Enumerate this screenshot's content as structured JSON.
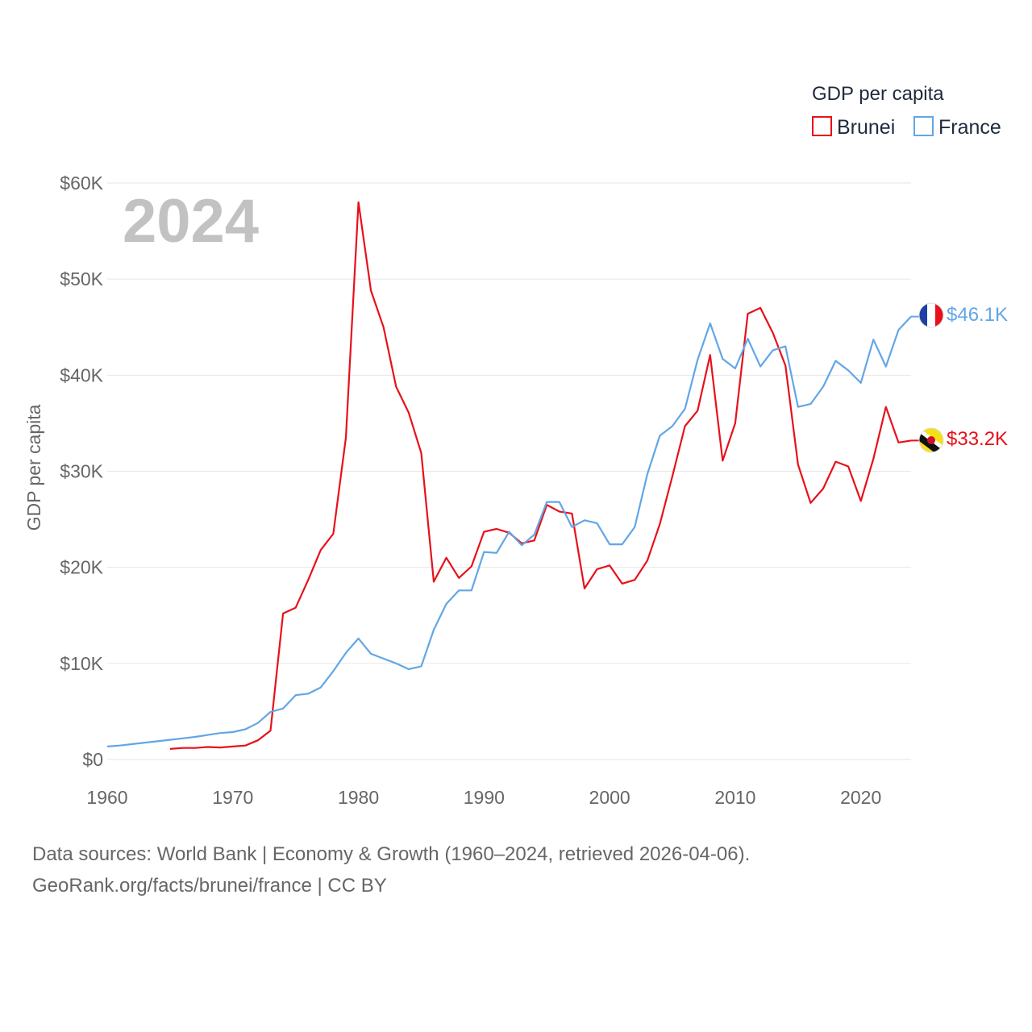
{
  "chart_data": {
    "type": "line",
    "legend_title": "GDP per capita",
    "ylabel": "GDP per capita",
    "year_label": "2024",
    "xlim": [
      1960,
      2024
    ],
    "ylim": [
      0,
      60000
    ],
    "x_ticks": [
      "1960",
      "1970",
      "1980",
      "1990",
      "2000",
      "2010",
      "2020"
    ],
    "y_ticks": [
      "$0",
      "$10K",
      "$20K",
      "$30K",
      "$40K",
      "$50K",
      "$60K"
    ],
    "series": [
      {
        "name": "Brunei",
        "color": "#e8101a",
        "end_label": "$33.2K",
        "flag_icon": "brunei-flag-icon",
        "points": [
          [
            1965,
            1100
          ],
          [
            1966,
            1200
          ],
          [
            1967,
            1200
          ],
          [
            1968,
            1300
          ],
          [
            1969,
            1250
          ],
          [
            1970,
            1350
          ],
          [
            1971,
            1450
          ],
          [
            1972,
            2000
          ],
          [
            1973,
            3000
          ],
          [
            1974,
            15200
          ],
          [
            1975,
            15800
          ],
          [
            1976,
            18700
          ],
          [
            1977,
            21800
          ],
          [
            1978,
            23500
          ],
          [
            1979,
            33500
          ],
          [
            1980,
            58000
          ],
          [
            1981,
            48800
          ],
          [
            1982,
            45000
          ],
          [
            1983,
            38800
          ],
          [
            1984,
            36100
          ],
          [
            1985,
            31900
          ],
          [
            1986,
            18500
          ],
          [
            1987,
            21000
          ],
          [
            1988,
            18900
          ],
          [
            1989,
            20100
          ],
          [
            1990,
            23700
          ],
          [
            1991,
            24000
          ],
          [
            1992,
            23600
          ],
          [
            1993,
            22500
          ],
          [
            1994,
            22800
          ],
          [
            1995,
            26500
          ],
          [
            1996,
            25800
          ],
          [
            1997,
            25600
          ],
          [
            1998,
            17800
          ],
          [
            1999,
            19800
          ],
          [
            2000,
            20200
          ],
          [
            2001,
            18300
          ],
          [
            2002,
            18700
          ],
          [
            2003,
            20700
          ],
          [
            2004,
            24500
          ],
          [
            2005,
            29500
          ],
          [
            2006,
            34700
          ],
          [
            2007,
            36300
          ],
          [
            2008,
            42100
          ],
          [
            2009,
            31100
          ],
          [
            2010,
            35000
          ],
          [
            2011,
            46400
          ],
          [
            2012,
            47000
          ],
          [
            2013,
            44400
          ],
          [
            2014,
            41000
          ],
          [
            2015,
            30700
          ],
          [
            2016,
            26700
          ],
          [
            2017,
            28200
          ],
          [
            2018,
            31000
          ],
          [
            2019,
            30500
          ],
          [
            2020,
            26900
          ],
          [
            2021,
            31300
          ],
          [
            2022,
            36700
          ],
          [
            2023,
            33000
          ],
          [
            2024,
            33200
          ]
        ]
      },
      {
        "name": "France",
        "color": "#62a6e6",
        "end_label": "$46.1K",
        "flag_icon": "france-flag-icon",
        "points": [
          [
            1960,
            1350
          ],
          [
            1961,
            1450
          ],
          [
            1962,
            1600
          ],
          [
            1963,
            1750
          ],
          [
            1964,
            1900
          ],
          [
            1965,
            2050
          ],
          [
            1966,
            2200
          ],
          [
            1967,
            2350
          ],
          [
            1968,
            2550
          ],
          [
            1969,
            2750
          ],
          [
            1970,
            2850
          ],
          [
            1971,
            3150
          ],
          [
            1972,
            3800
          ],
          [
            1973,
            4950
          ],
          [
            1974,
            5300
          ],
          [
            1975,
            6700
          ],
          [
            1976,
            6850
          ],
          [
            1977,
            7500
          ],
          [
            1978,
            9200
          ],
          [
            1979,
            11100
          ],
          [
            1980,
            12600
          ],
          [
            1981,
            11000
          ],
          [
            1982,
            10500
          ],
          [
            1983,
            10000
          ],
          [
            1984,
            9400
          ],
          [
            1985,
            9700
          ],
          [
            1986,
            13500
          ],
          [
            1987,
            16200
          ],
          [
            1988,
            17600
          ],
          [
            1989,
            17600
          ],
          [
            1990,
            21600
          ],
          [
            1991,
            21500
          ],
          [
            1992,
            23700
          ],
          [
            1993,
            22300
          ],
          [
            1994,
            23400
          ],
          [
            1995,
            26800
          ],
          [
            1996,
            26800
          ],
          [
            1997,
            24200
          ],
          [
            1998,
            24900
          ],
          [
            1999,
            24600
          ],
          [
            2000,
            22400
          ],
          [
            2001,
            22400
          ],
          [
            2002,
            24200
          ],
          [
            2003,
            29700
          ],
          [
            2004,
            33700
          ],
          [
            2005,
            34700
          ],
          [
            2006,
            36500
          ],
          [
            2007,
            41600
          ],
          [
            2008,
            45400
          ],
          [
            2009,
            41700
          ],
          [
            2010,
            40700
          ],
          [
            2011,
            43800
          ],
          [
            2012,
            40900
          ],
          [
            2013,
            42600
          ],
          [
            2014,
            43000
          ],
          [
            2015,
            36700
          ],
          [
            2016,
            37000
          ],
          [
            2017,
            38800
          ],
          [
            2018,
            41500
          ],
          [
            2019,
            40500
          ],
          [
            2020,
            39200
          ],
          [
            2021,
            43700
          ],
          [
            2022,
            40900
          ],
          [
            2023,
            44700
          ],
          [
            2024,
            46100
          ]
        ]
      }
    ]
  },
  "footer": {
    "source_line": "Data sources: World Bank | Economy & Growth (1960–2024, retrieved 2026-04-06).",
    "credit_line": "GeoRank.org/facts/brunei/france | CC BY"
  }
}
